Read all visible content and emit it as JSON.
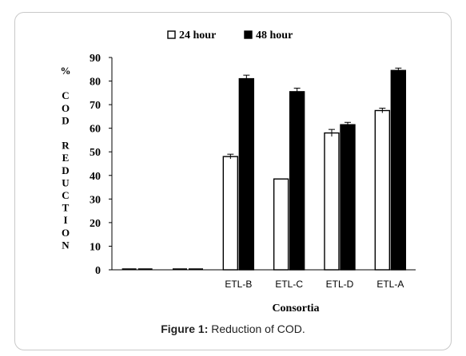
{
  "chart_data": {
    "type": "bar",
    "categories": [
      "",
      "",
      "ETL-B",
      "ETL-C",
      "ETL-D",
      "ETL-A"
    ],
    "series": [
      {
        "name": "24 hour",
        "values": [
          0,
          0,
          48,
          38.5,
          58,
          67.5
        ],
        "errors": [
          0,
          0,
          1,
          0,
          1.5,
          1
        ]
      },
      {
        "name": "48 hour",
        "values": [
          0,
          0,
          81,
          75.5,
          61.5,
          84.5
        ],
        "errors": [
          0,
          0,
          1.5,
          1.5,
          1,
          1
        ]
      }
    ],
    "xlabel": "Consortia",
    "ylabel": "% COD REDUCTION",
    "ylabel_lines": [
      "%",
      "",
      "C",
      "O",
      "D",
      "",
      "R",
      "E",
      "D",
      "U",
      "C",
      "T",
      "I",
      "O",
      "N"
    ],
    "ylim": [
      0,
      90
    ],
    "yticks": [
      "0",
      "10",
      "20",
      "30",
      "40",
      "50",
      "60",
      "70",
      "80",
      "90"
    ],
    "legend_position": "top",
    "colors": {
      "24 hour": "#ffffff",
      "48 hour": "#000000"
    }
  },
  "caption": {
    "label": "Figure 1:",
    "text": " Reduction of COD."
  }
}
